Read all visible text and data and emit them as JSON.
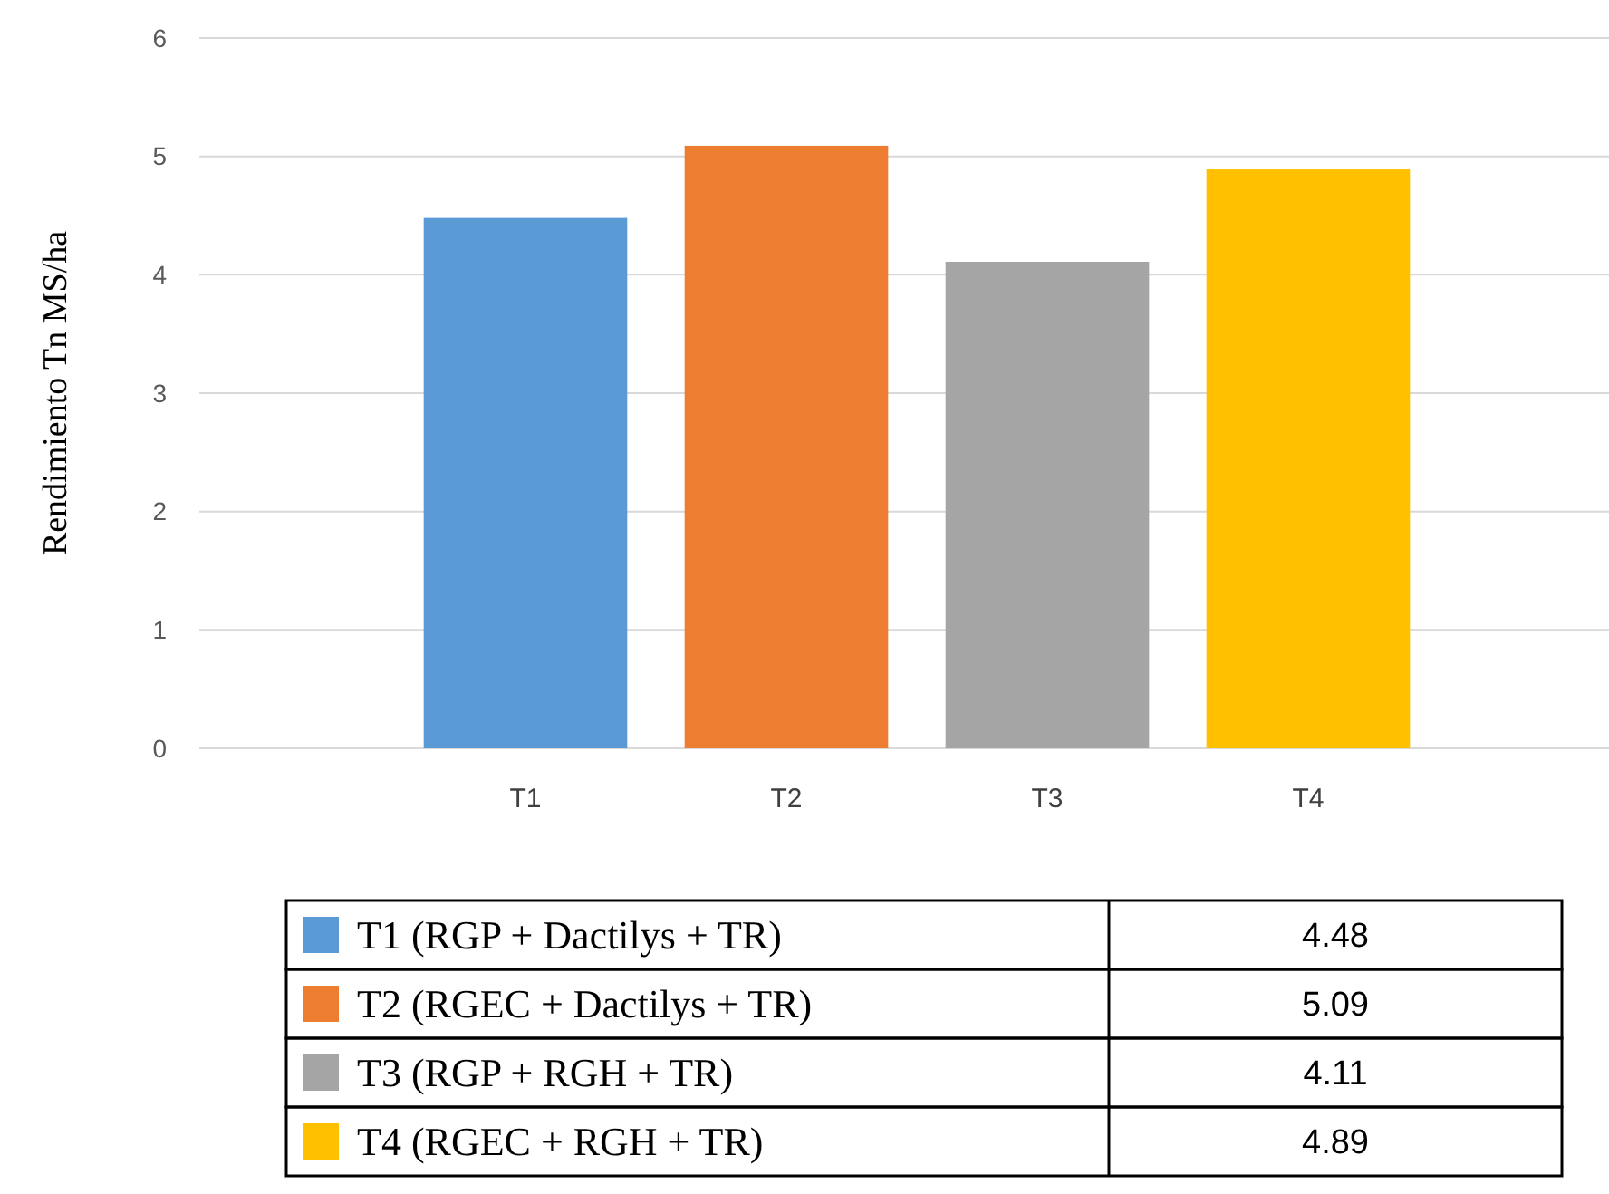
{
  "chart_data": {
    "type": "bar",
    "ylabel": "Rendimiento Tn MS/ha",
    "categories": [
      "T1",
      "T2",
      "T3",
      "T4"
    ],
    "series": [
      {
        "name": "T1 (RGP + Dactilys + TR)",
        "color": "#5b9bd5",
        "values": [
          4.48,
          null,
          null,
          null
        ]
      },
      {
        "name": "T2 (RGEC + Dactilys + TR)",
        "color": "#ed7d31",
        "values": [
          null,
          5.09,
          null,
          null
        ]
      },
      {
        "name": "T3 (RGP + RGH + TR)",
        "color": "#a5a5a5",
        "values": [
          null,
          null,
          4.11,
          null
        ]
      },
      {
        "name": "T4 (RGEC + RGH + TR)",
        "color": "#ffc000",
        "values": [
          null,
          null,
          null,
          4.89
        ]
      }
    ],
    "ylim": [
      0,
      6
    ],
    "yticks": [
      0,
      1,
      2,
      3,
      4,
      5,
      6
    ],
    "grid": "y",
    "legend": "bottom",
    "annotations": [
      "4.48",
      "5.09",
      "4.11",
      "4.89"
    ]
  }
}
